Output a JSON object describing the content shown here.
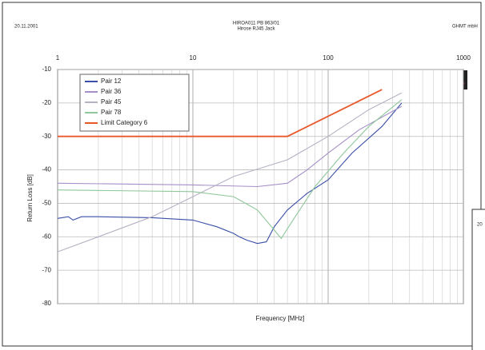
{
  "chart_data": {
    "type": "line",
    "header_left": "20.11.2001",
    "title": "HIROA011 PB 863/01",
    "subtitle": "Hirose RJ45 Jack",
    "header_right": "GHMT mbH",
    "x_label": "Frequency [MHz]",
    "y_label": "Return Loss [dB]",
    "log_x": true,
    "grid": true,
    "legend": "upper left",
    "xlim": [
      1,
      1000
    ],
    "xticks": [
      1,
      10,
      100,
      1000
    ],
    "xminorticks": [
      2,
      3,
      4,
      5,
      6,
      7,
      8,
      9,
      20,
      30,
      40,
      50,
      60,
      70,
      80,
      90,
      200,
      300,
      400,
      500,
      600,
      700,
      800,
      900
    ],
    "ylim": [
      -80,
      -10
    ],
    "yticks": [
      -80,
      -70,
      -60,
      -50,
      -40,
      -30,
      -20,
      -10
    ],
    "series": [
      {
        "name": "Pair 12",
        "color": "#3a4fa8",
        "x": [
          1,
          1.2,
          1.3,
          1.5,
          2,
          5,
          10,
          15,
          20,
          22,
          25,
          30,
          35,
          40,
          50,
          70,
          100,
          150,
          250,
          350
        ],
        "values": [
          -54.5,
          -54,
          -55,
          -54,
          -54,
          -54.3,
          -55,
          -57,
          -59,
          -60,
          -61,
          -62,
          -61.5,
          -57,
          -52,
          -47,
          -43,
          -35,
          -27,
          -20
        ]
      },
      {
        "name": "Pair 36",
        "color": "#a58fc8",
        "x": [
          1,
          10,
          30,
          50,
          70,
          100,
          170,
          350
        ],
        "values": [
          -44,
          -44.5,
          -45,
          -44,
          -40,
          -35,
          -28,
          -21
        ]
      },
      {
        "name": "Pair 45",
        "color": "#b7b0c4",
        "x": [
          1,
          2,
          5,
          10,
          20,
          50,
          100,
          200,
          350
        ],
        "values": [
          -64.5,
          -60,
          -54,
          -48,
          -42,
          -37,
          -30,
          -22,
          -17
        ]
      },
      {
        "name": "Pair 78",
        "color": "#8fc89a",
        "x": [
          1,
          10,
          20,
          30,
          40,
          45,
          55,
          80,
          130,
          200,
          350
        ],
        "values": [
          -46,
          -46.5,
          -48,
          -52,
          -58,
          -60.5,
          -55,
          -45,
          -35,
          -27,
          -19
        ]
      },
      {
        "name": "Limit Category 6",
        "color": "#e8582a",
        "x": [
          1,
          50,
          250
        ],
        "values": [
          -30,
          -30,
          -16
        ]
      }
    ]
  },
  "overlay_window": {
    "text": "20"
  }
}
